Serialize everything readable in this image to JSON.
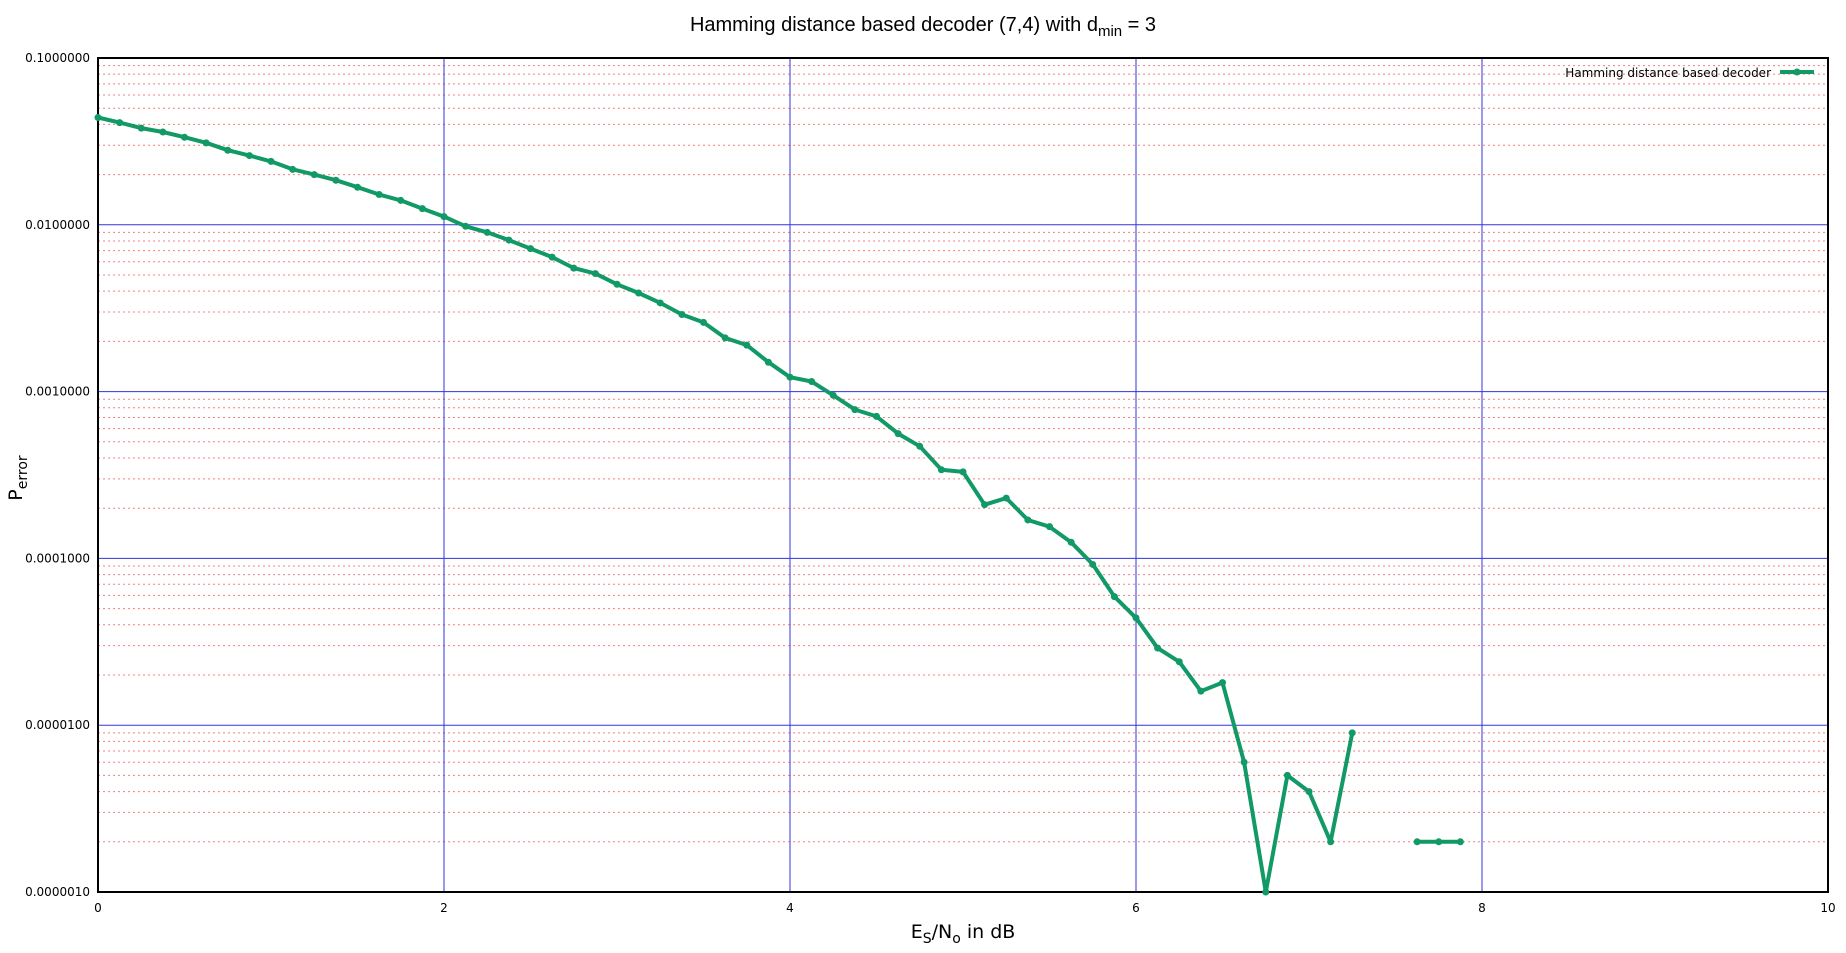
{
  "chart_data": {
    "type": "line",
    "title": {
      "main": "Hamming distance based decoder (7,4) with d",
      "sub": "min",
      "tail": " = 3"
    },
    "xlabel": {
      "main": "E",
      "sub1": "S",
      "mid": "/N",
      "sub2": "o",
      "tail": " in dB"
    },
    "ylabel": {
      "main": "P",
      "sub": "error"
    },
    "xlim": [
      0,
      10
    ],
    "ylim": [
      1e-06,
      0.1
    ],
    "yscale": "log",
    "x_ticks": [
      {
        "value": 0,
        "label": "0"
      },
      {
        "value": 2,
        "label": "2"
      },
      {
        "value": 4,
        "label": "4"
      },
      {
        "value": 6,
        "label": "6"
      },
      {
        "value": 8,
        "label": "8"
      },
      {
        "value": 10,
        "label": "10"
      }
    ],
    "y_ticks": [
      {
        "value": 0.1,
        "label": "0.1000000"
      },
      {
        "value": 0.01,
        "label": "0.0100000"
      },
      {
        "value": 0.001,
        "label": "0.0010000"
      },
      {
        "value": 0.0001,
        "label": "0.0001000"
      },
      {
        "value": 1e-05,
        "label": "0.0000100"
      },
      {
        "value": 1e-06,
        "label": "0.0000010"
      }
    ],
    "grid": {
      "major": true,
      "minor": true,
      "major_color": "#3333dd",
      "minor_color": "#f08080"
    },
    "legend": {
      "position": "top-right"
    },
    "series": [
      {
        "name": "Hamming distance based decoder",
        "color": "#119966",
        "segments": [
          [
            [
              0.0,
              0.044
            ],
            [
              0.125,
              0.041
            ],
            [
              0.25,
              0.038
            ],
            [
              0.375,
              0.036
            ],
            [
              0.5,
              0.0335
            ],
            [
              0.625,
              0.031
            ],
            [
              0.75,
              0.028
            ],
            [
              0.875,
              0.026
            ],
            [
              1.0,
              0.024
            ],
            [
              1.125,
              0.0215
            ],
            [
              1.25,
              0.02
            ],
            [
              1.375,
              0.0185
            ],
            [
              1.5,
              0.0168
            ],
            [
              1.625,
              0.0152
            ],
            [
              1.75,
              0.014
            ],
            [
              1.875,
              0.0125
            ],
            [
              2.0,
              0.0112
            ],
            [
              2.125,
              0.0098
            ],
            [
              2.25,
              0.009
            ],
            [
              2.375,
              0.0081
            ],
            [
              2.5,
              0.0072
            ],
            [
              2.625,
              0.0064
            ],
            [
              2.75,
              0.0055
            ],
            [
              2.875,
              0.0051
            ],
            [
              3.0,
              0.0044
            ],
            [
              3.125,
              0.0039
            ],
            [
              3.25,
              0.0034
            ],
            [
              3.375,
              0.0029
            ],
            [
              3.5,
              0.0026
            ],
            [
              3.625,
              0.0021
            ],
            [
              3.75,
              0.0019
            ],
            [
              3.875,
              0.0015
            ],
            [
              4.0,
              0.00122
            ],
            [
              4.125,
              0.00115
            ],
            [
              4.25,
              0.00095
            ],
            [
              4.375,
              0.00078
            ],
            [
              4.5,
              0.00071
            ],
            [
              4.625,
              0.00056
            ],
            [
              4.75,
              0.00047
            ],
            [
              4.875,
              0.00034
            ],
            [
              5.0,
              0.00033
            ],
            [
              5.125,
              0.00021
            ],
            [
              5.25,
              0.00023
            ],
            [
              5.375,
              0.00017
            ],
            [
              5.5,
              0.000155
            ],
            [
              5.625,
              0.000125
            ],
            [
              5.75,
              9.2e-05
            ],
            [
              5.875,
              5.9e-05
            ],
            [
              6.0,
              4.4e-05
            ],
            [
              6.125,
              2.9e-05
            ],
            [
              6.25,
              2.4e-05
            ],
            [
              6.375,
              1.6e-05
            ],
            [
              6.5,
              1.8e-05
            ],
            [
              6.625,
              6e-06
            ],
            [
              6.75,
              1e-06
            ],
            [
              6.875,
              5e-06
            ],
            [
              7.0,
              4e-06
            ],
            [
              7.125,
              2e-06
            ],
            [
              7.25,
              9e-06
            ]
          ],
          [
            [
              7.625,
              2e-06
            ],
            [
              7.75,
              2e-06
            ],
            [
              7.875,
              2e-06
            ]
          ]
        ]
      }
    ]
  }
}
